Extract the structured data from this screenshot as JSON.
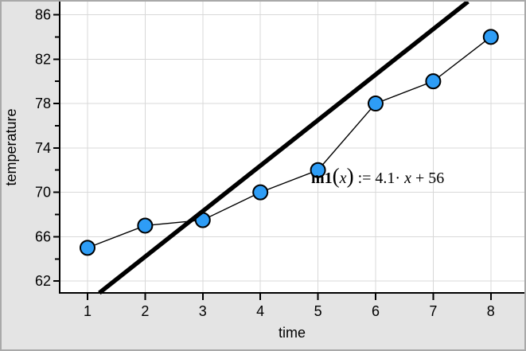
{
  "chart_data": {
    "type": "scatter",
    "title": "",
    "xlabel": "time",
    "ylabel": "temperature",
    "x": [
      1,
      2,
      3,
      4,
      5,
      6,
      7,
      8
    ],
    "y": [
      65,
      67,
      67.5,
      70,
      72,
      78,
      80,
      84
    ],
    "points_connected": true,
    "x_axis": {
      "min": 0.517,
      "max": 8.583,
      "ticks": [
        1,
        2,
        3,
        4,
        5,
        6,
        7,
        8
      ],
      "grid": true
    },
    "y_axis": {
      "min": 60.94,
      "max": 87.18,
      "major_ticks": [
        62,
        66,
        70,
        74,
        78,
        82,
        86
      ],
      "minor_ticks": [
        64,
        68,
        72,
        76,
        80,
        84
      ],
      "grid": true
    },
    "fit_line": {
      "slope": 4.1,
      "intercept": 56,
      "equation_text": "m1(x) := 4.1·x + 56",
      "label_segments": [
        {
          "t": "m1",
          "s": "bold"
        },
        {
          "t": "(",
          "s": "paren"
        },
        {
          "t": "x",
          "s": "italic"
        },
        {
          "t": ")",
          "s": "paren"
        },
        {
          "t": " := 4.1",
          "s": "plain"
        },
        {
          "t": "· ",
          "s": "plain"
        },
        {
          "t": "x",
          "s": "italic"
        },
        {
          "t": " + 56",
          "s": "plain"
        }
      ]
    },
    "legend": null,
    "colors": {
      "point_fill": "#2e9df6",
      "point_stroke": "#000000",
      "connect_line": "#000000",
      "fit_line": "#000000",
      "grid": "#d8d8d8",
      "plot_bg": "#ffffff",
      "margin_bg": "#e4e4e4",
      "frame_border": "#a9a9a9",
      "text": "#000000"
    }
  }
}
